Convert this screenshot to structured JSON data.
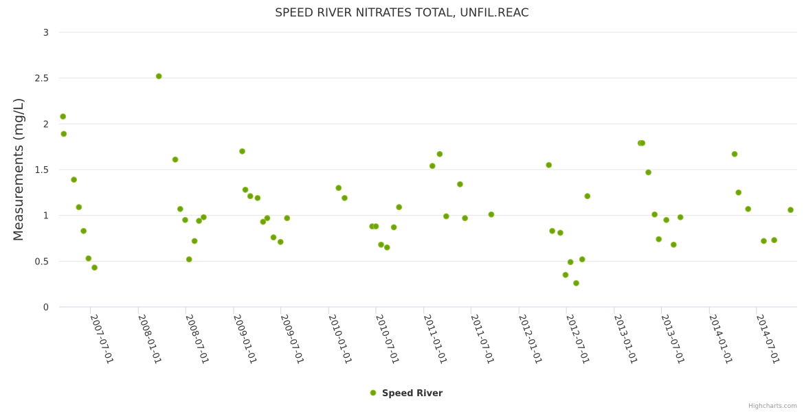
{
  "chart_data": {
    "type": "scatter",
    "title": "SPEED RIVER NITRATES TOTAL, UNFIL.REAC",
    "ylabel": "Measurements (mg/L)",
    "xlabel": "",
    "ylim": [
      0,
      3
    ],
    "y_ticks": [
      "0",
      "0.5",
      "1",
      "1.5",
      "2",
      "2.5",
      "3"
    ],
    "x_ticks": [
      "2007-07-01",
      "2008-01-01",
      "2008-07-01",
      "2009-01-01",
      "2009-07-01",
      "2010-01-01",
      "2010-07-01",
      "2011-01-01",
      "2011-07-01",
      "2012-01-01",
      "2012-07-01",
      "2013-01-01",
      "2013-07-01",
      "2014-01-01",
      "2014-07-01"
    ],
    "xlim": [
      "2007-03-03",
      "2014-12-04"
    ],
    "grid": true,
    "legend_position": "bottom-center",
    "credits": "Highcharts.com",
    "series": [
      {
        "name": "Speed River",
        "color": "#6aa50a",
        "marker_border": "#a2c13a",
        "points": [
          {
            "x": "2007-03-18",
            "y": 2.08
          },
          {
            "x": "2007-03-21",
            "y": 1.89
          },
          {
            "x": "2007-04-29",
            "y": 1.39
          },
          {
            "x": "2007-05-18",
            "y": 1.09
          },
          {
            "x": "2007-06-05",
            "y": 0.83
          },
          {
            "x": "2007-06-24",
            "y": 0.53
          },
          {
            "x": "2007-07-17",
            "y": 0.43
          },
          {
            "x": "2008-03-20",
            "y": 2.52
          },
          {
            "x": "2008-05-22",
            "y": 1.61
          },
          {
            "x": "2008-06-10",
            "y": 1.07
          },
          {
            "x": "2008-06-29",
            "y": 0.95
          },
          {
            "x": "2008-07-14",
            "y": 0.52
          },
          {
            "x": "2008-08-04",
            "y": 0.72
          },
          {
            "x": "2008-08-21",
            "y": 0.94
          },
          {
            "x": "2008-09-08",
            "y": 0.98
          },
          {
            "x": "2009-02-03",
            "y": 1.7
          },
          {
            "x": "2009-02-15",
            "y": 1.28
          },
          {
            "x": "2009-03-06",
            "y": 1.21
          },
          {
            "x": "2009-04-03",
            "y": 1.19
          },
          {
            "x": "2009-04-24",
            "y": 0.93
          },
          {
            "x": "2009-05-10",
            "y": 0.97
          },
          {
            "x": "2009-06-03",
            "y": 0.76
          },
          {
            "x": "2009-06-30",
            "y": 0.71
          },
          {
            "x": "2009-07-25",
            "y": 0.97
          },
          {
            "x": "2010-02-08",
            "y": 1.3
          },
          {
            "x": "2010-03-03",
            "y": 1.19
          },
          {
            "x": "2010-06-17",
            "y": 0.88
          },
          {
            "x": "2010-07-01",
            "y": 0.88
          },
          {
            "x": "2010-07-21",
            "y": 0.68
          },
          {
            "x": "2010-08-13",
            "y": 0.65
          },
          {
            "x": "2010-09-08",
            "y": 0.87
          },
          {
            "x": "2010-09-28",
            "y": 1.09
          },
          {
            "x": "2011-02-03",
            "y": 1.54
          },
          {
            "x": "2011-03-03",
            "y": 1.67
          },
          {
            "x": "2011-03-28",
            "y": 0.99
          },
          {
            "x": "2011-05-20",
            "y": 1.34
          },
          {
            "x": "2011-06-08",
            "y": 0.97
          },
          {
            "x": "2011-09-17",
            "y": 1.01
          },
          {
            "x": "2012-04-25",
            "y": 1.55
          },
          {
            "x": "2012-05-08",
            "y": 0.83
          },
          {
            "x": "2012-06-08",
            "y": 0.81
          },
          {
            "x": "2012-06-28",
            "y": 0.35
          },
          {
            "x": "2012-07-17",
            "y": 0.49
          },
          {
            "x": "2012-08-08",
            "y": 0.26
          },
          {
            "x": "2012-08-31",
            "y": 0.52
          },
          {
            "x": "2012-09-20",
            "y": 1.21
          },
          {
            "x": "2013-04-12",
            "y": 1.79
          },
          {
            "x": "2013-04-19",
            "y": 1.79
          },
          {
            "x": "2013-05-12",
            "y": 1.47
          },
          {
            "x": "2013-06-05",
            "y": 1.01
          },
          {
            "x": "2013-06-21",
            "y": 0.74
          },
          {
            "x": "2013-07-20",
            "y": 0.95
          },
          {
            "x": "2013-08-17",
            "y": 0.68
          },
          {
            "x": "2013-09-12",
            "y": 0.98
          },
          {
            "x": "2014-04-08",
            "y": 1.67
          },
          {
            "x": "2014-04-23",
            "y": 1.25
          },
          {
            "x": "2014-05-30",
            "y": 1.07
          },
          {
            "x": "2014-07-29",
            "y": 0.72
          },
          {
            "x": "2014-09-07",
            "y": 0.73
          },
          {
            "x": "2014-11-09",
            "y": 1.06
          }
        ]
      }
    ]
  }
}
